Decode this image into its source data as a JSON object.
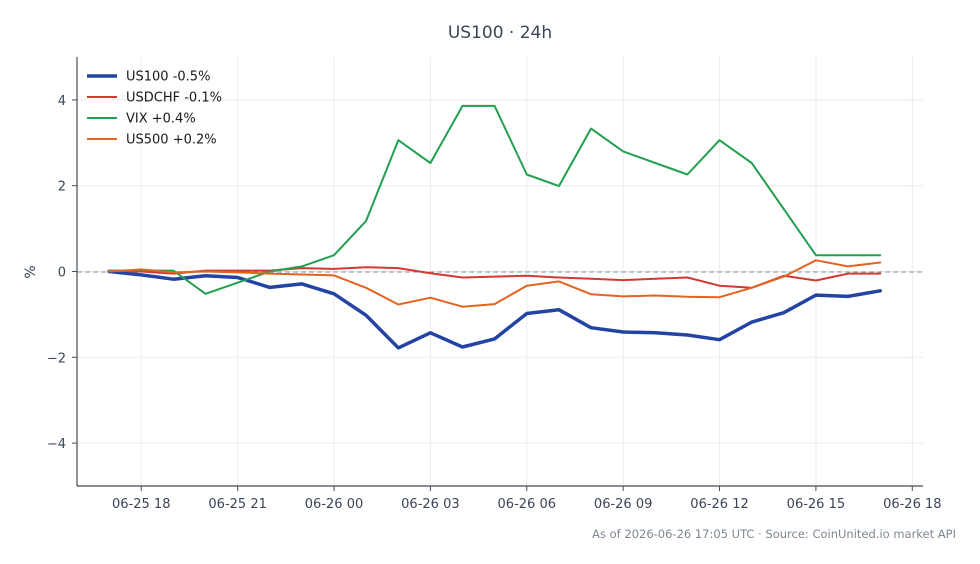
{
  "chart_data": {
    "type": "line",
    "title": "US100 · 24h",
    "xlabel": "",
    "ylabel": "%",
    "ylim": [
      -5,
      5
    ],
    "xlim": [
      "2026-06-25 16:00",
      "2026-06-26 18:20"
    ],
    "x_ticks": [
      "06-25 18",
      "06-25 21",
      "06-26 00",
      "06-26 03",
      "06-26 06",
      "06-26 09",
      "06-26 12",
      "06-26 15",
      "06-26 18"
    ],
    "y_ticks": [
      4,
      2,
      0,
      -2,
      -4
    ],
    "y_tick_labels": [
      "4",
      "2",
      "0",
      "−2",
      "−4"
    ],
    "grid": true,
    "legend_position": "top-left",
    "zero_reference_line": true,
    "x": [
      "2026-06-25 17:00",
      "2026-06-25 18:00",
      "2026-06-25 19:00",
      "2026-06-25 20:00",
      "2026-06-25 21:00",
      "2026-06-25 22:00",
      "2026-06-25 23:00",
      "2026-06-26 00:00",
      "2026-06-26 01:00",
      "2026-06-26 02:00",
      "2026-06-26 03:00",
      "2026-06-26 04:00",
      "2026-06-26 05:00",
      "2026-06-26 06:00",
      "2026-06-26 07:00",
      "2026-06-26 08:00",
      "2026-06-26 09:00",
      "2026-06-26 10:00",
      "2026-06-26 11:00",
      "2026-06-26 12:00",
      "2026-06-26 13:00",
      "2026-06-26 14:00",
      "2026-06-26 15:00",
      "2026-06-26 16:00",
      "2026-06-26 17:00"
    ],
    "series": [
      {
        "name": "US100 -0.5%",
        "color": "#2444a4",
        "width": 3.5,
        "values": [
          0.0,
          -0.08,
          -0.18,
          -0.1,
          -0.14,
          -0.37,
          -0.29,
          -0.52,
          -1.02,
          -1.78,
          -1.43,
          -1.76,
          -1.57,
          -0.98,
          -0.89,
          -1.31,
          -1.41,
          -1.43,
          -1.48,
          -1.59,
          -1.18,
          -0.96,
          -0.55,
          -0.58,
          -0.45
        ]
      },
      {
        "name": "USDCHF -0.1%",
        "color": "#d23a30",
        "width": 2,
        "values": [
          0.02,
          0.0,
          -0.05,
          0.02,
          0.02,
          0.02,
          0.08,
          0.06,
          0.1,
          0.08,
          -0.04,
          -0.14,
          -0.12,
          -0.1,
          -0.14,
          -0.17,
          -0.2,
          -0.17,
          -0.14,
          -0.33,
          -0.38,
          -0.1,
          -0.21,
          -0.05,
          -0.05
        ]
      },
      {
        "name": "VIX +0.4%",
        "color": "#21a04f",
        "width": 2,
        "values": [
          0.02,
          0.02,
          0.02,
          -0.52,
          -0.26,
          0.0,
          0.12,
          0.38,
          1.18,
          3.06,
          2.53,
          3.86,
          3.86,
          2.26,
          1.99,
          3.33,
          2.8,
          null,
          2.26,
          3.06,
          2.53,
          null,
          0.38,
          0.38,
          0.38
        ]
      },
      {
        "name": "US500 +0.2%",
        "color": "#e2641f",
        "width": 2,
        "values": [
          0.0,
          0.05,
          -0.02,
          0.0,
          -0.02,
          -0.05,
          -0.07,
          -0.09,
          -0.38,
          -0.77,
          -0.61,
          -0.82,
          -0.76,
          -0.33,
          -0.23,
          -0.53,
          -0.58,
          -0.56,
          -0.59,
          -0.6,
          -0.38,
          -0.12,
          0.26,
          0.12,
          0.21
        ]
      }
    ],
    "footer": "As of 2026-06-26 17:05 UTC · Source: CoinUnited.io market API"
  }
}
